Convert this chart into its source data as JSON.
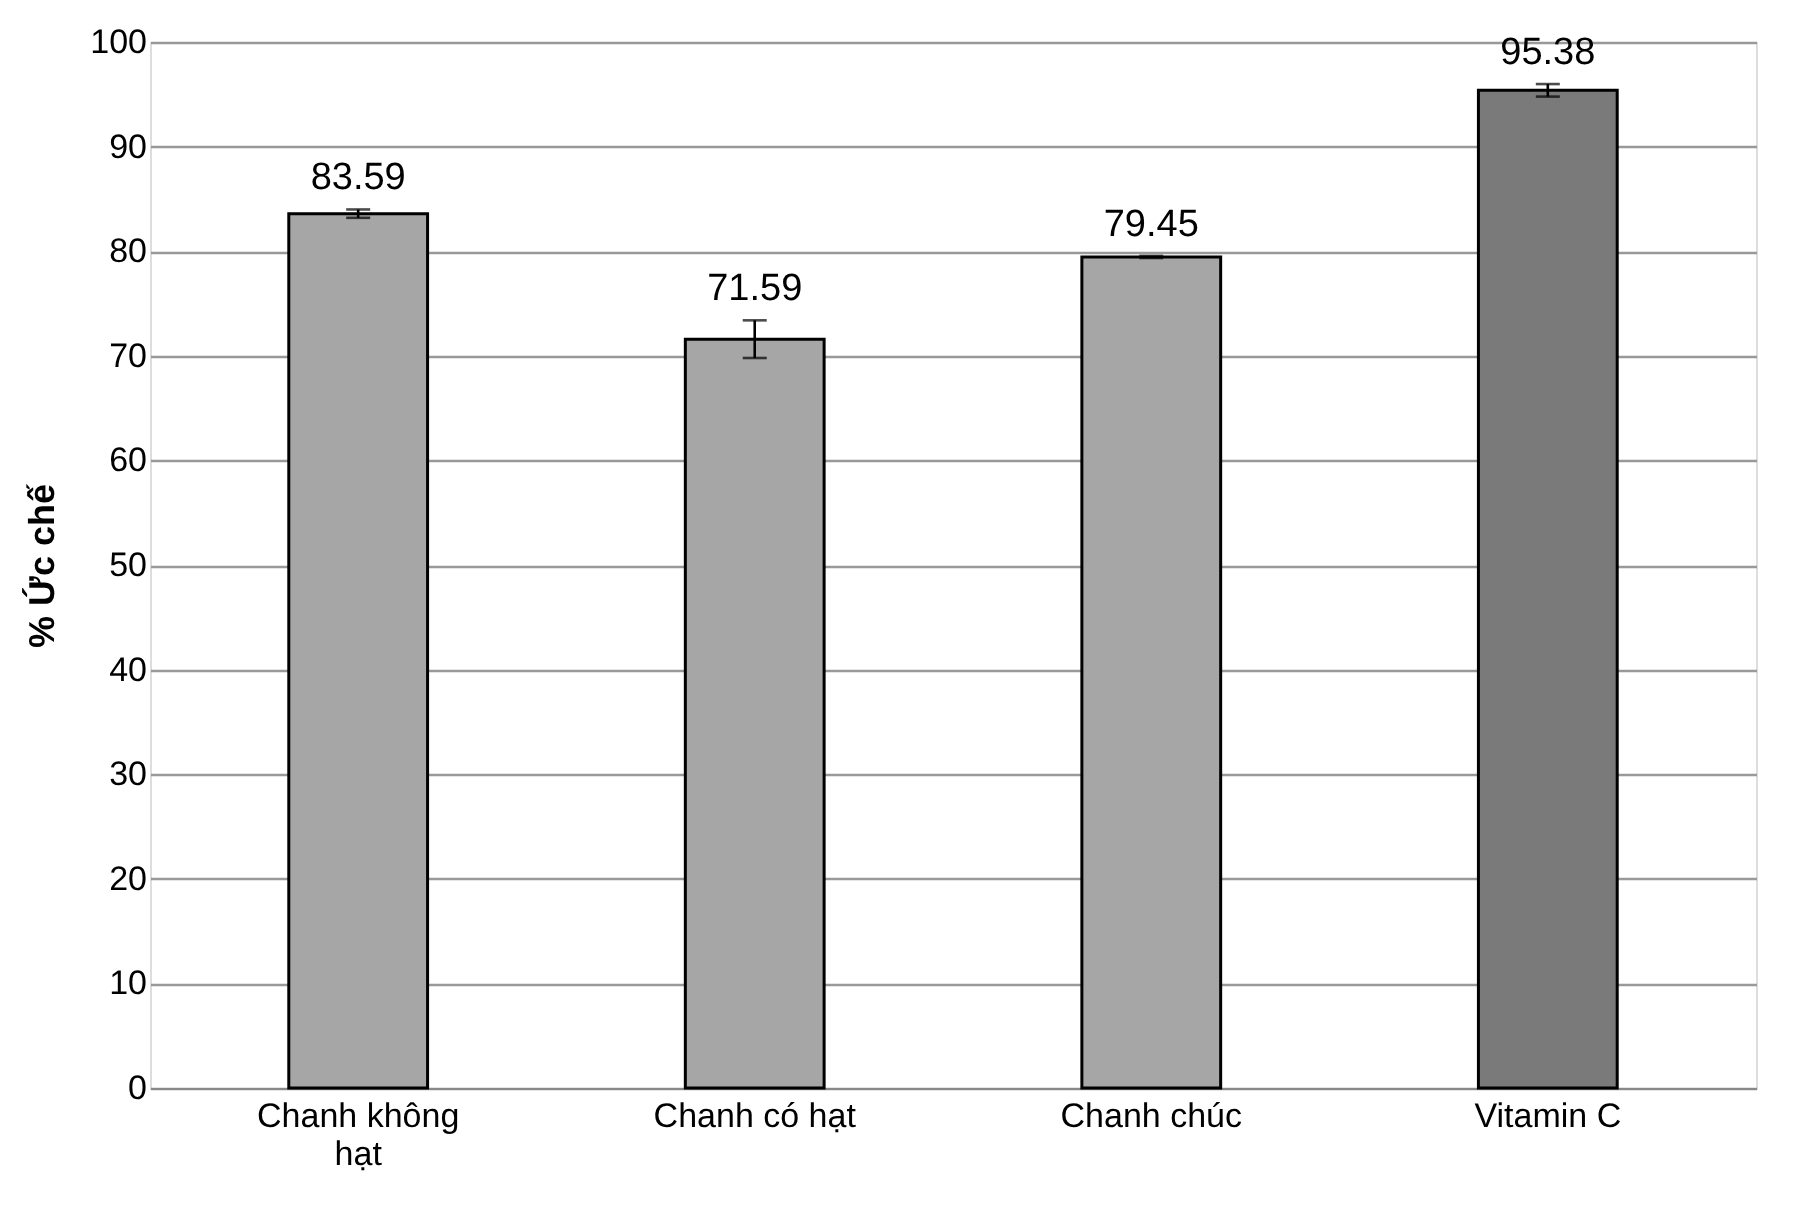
{
  "chart_data": {
    "type": "bar",
    "ylabel": "% Ức chế",
    "categories": [
      "Chanh không hạt",
      "Chanh có hạt",
      "Chanh chúc",
      "Vitamin C"
    ],
    "values": [
      83.59,
      71.59,
      79.45,
      95.38
    ],
    "errors": [
      0.4,
      1.8,
      0.1,
      0.6
    ],
    "colors": [
      "#a6a6a6",
      "#a6a6a6",
      "#a6a6a6",
      "#7a7a7a"
    ],
    "ylim": [
      0,
      100
    ],
    "yticks": [
      0,
      10,
      20,
      30,
      40,
      50,
      60,
      70,
      80,
      90,
      100
    ],
    "grid": "y",
    "data_labels": true
  }
}
